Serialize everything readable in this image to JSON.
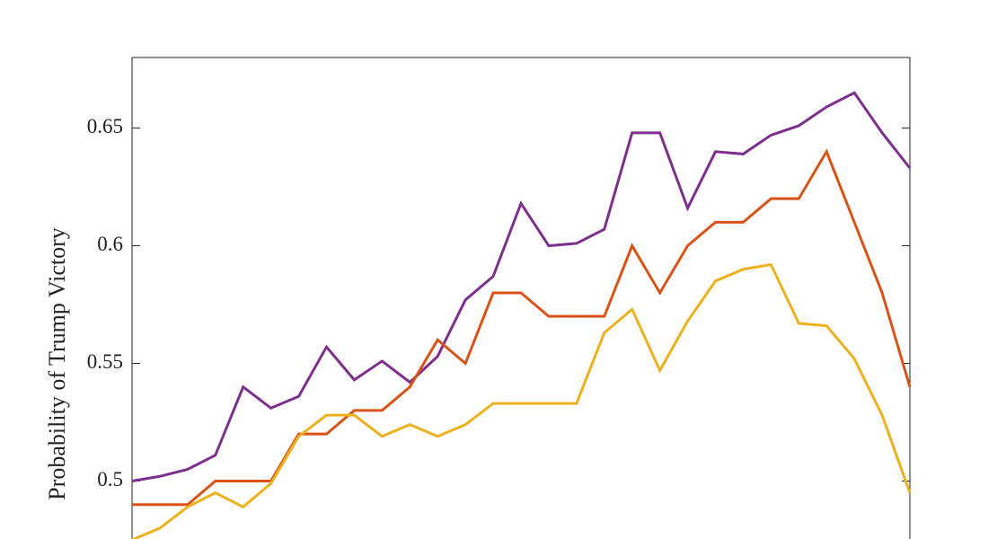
{
  "chart_data": {
    "type": "line",
    "y_label": "Probability of Trump Victory",
    "x": [
      0,
      1,
      2,
      3,
      4,
      5,
      6,
      7,
      8,
      9,
      10,
      11,
      12,
      13,
      14,
      15,
      16,
      17,
      18,
      19,
      20,
      21,
      22,
      23,
      24,
      25,
      26,
      27,
      28
    ],
    "xlim": [
      0,
      28
    ],
    "ylim": [
      0.475,
      0.68
    ],
    "yticks": [
      0.5,
      0.55,
      0.6,
      0.65
    ],
    "series": [
      {
        "color": "#7e2f8e",
        "values": [
          0.5,
          0.502,
          0.505,
          0.511,
          0.54,
          0.531,
          0.536,
          0.557,
          0.543,
          0.551,
          0.542,
          0.553,
          0.577,
          0.587,
          0.618,
          0.6,
          0.601,
          0.607,
          0.648,
          0.648,
          0.616,
          0.64,
          0.639,
          0.647,
          0.651,
          0.659,
          0.665,
          0.648,
          0.633
        ]
      },
      {
        "color": "#d95319",
        "values": [
          0.49,
          0.49,
          0.49,
          0.5,
          0.5,
          0.5,
          0.52,
          0.52,
          0.53,
          0.53,
          0.54,
          0.56,
          0.55,
          0.58,
          0.58,
          0.57,
          0.57,
          0.57,
          0.6,
          0.58,
          0.6,
          0.61,
          0.61,
          0.62,
          0.62,
          0.64,
          0.61,
          0.58,
          0.54
        ]
      },
      {
        "color": "#edb120",
        "values": [
          0.475,
          0.48,
          0.489,
          0.495,
          0.489,
          0.499,
          0.519,
          0.528,
          0.528,
          0.519,
          0.524,
          0.519,
          0.524,
          0.533,
          0.533,
          0.533,
          0.533,
          0.563,
          0.573,
          0.547,
          0.568,
          0.585,
          0.59,
          0.592,
          0.567,
          0.566,
          0.552,
          0.528,
          0.495
        ]
      }
    ]
  }
}
